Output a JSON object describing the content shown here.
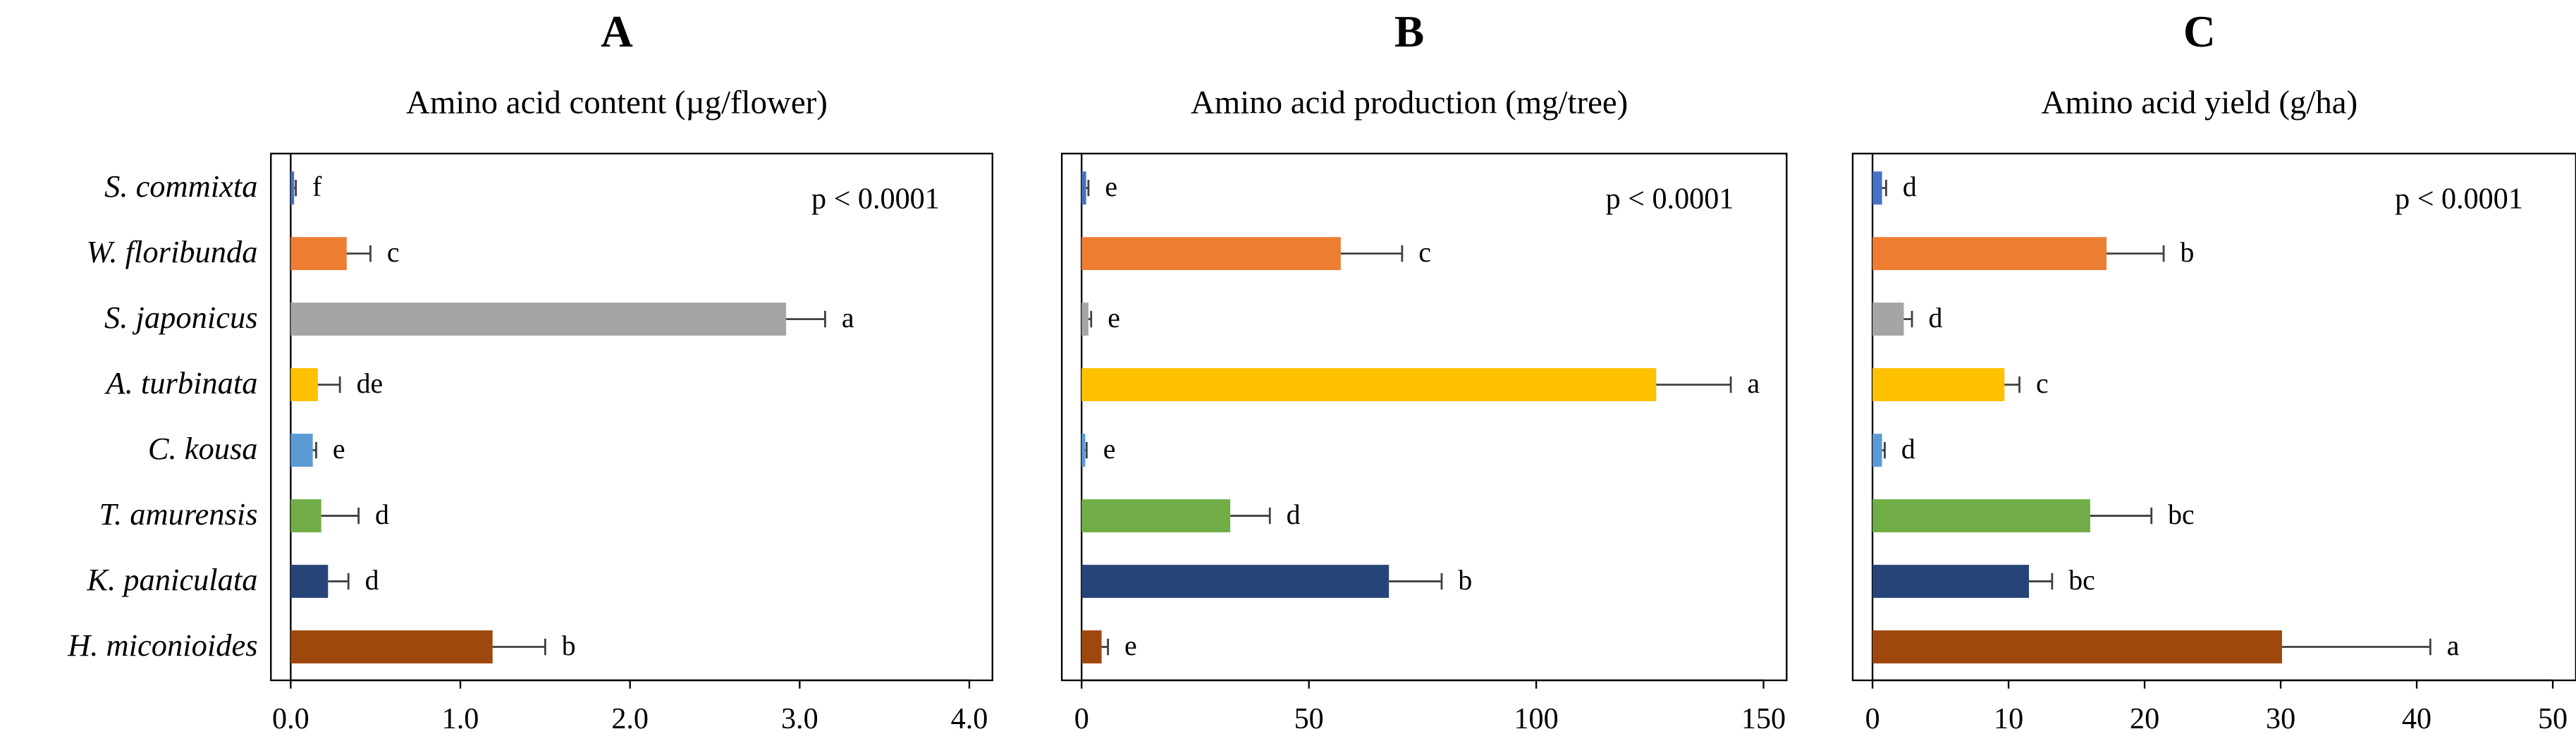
{
  "chart_data": [
    {
      "type": "bar",
      "orientation": "horizontal",
      "title": "A",
      "subtitle": "Amino acid content (µg/flower)",
      "categories": [
        "S. commixta",
        "W. floribunda",
        "S. japonicus",
        "A. turbinata",
        "C. kousa",
        "T. amurensis",
        "K. paniculata",
        "H. miconioides"
      ],
      "colors": [
        "#4472c4",
        "#ed7d31",
        "#a5a5a5",
        "#ffc000",
        "#5b9bd5",
        "#70ad47",
        "#264478",
        "#9e480e"
      ],
      "values": [
        0.02,
        0.33,
        2.92,
        0.16,
        0.13,
        0.18,
        0.22,
        1.19
      ],
      "errors": [
        0.01,
        0.14,
        0.23,
        0.13,
        0.02,
        0.22,
        0.12,
        0.31
      ],
      "letters": [
        "f",
        "c",
        "a",
        "de",
        "e",
        "d",
        "d",
        "b"
      ],
      "annotation": "p < 0.0001",
      "xlim": [
        0,
        4
      ],
      "xticks": [
        {
          "value": 0,
          "label": "0.0"
        },
        {
          "value": 1,
          "label": "1.0"
        },
        {
          "value": 2,
          "label": "2.0"
        },
        {
          "value": 3,
          "label": "3.0"
        },
        {
          "value": 4,
          "label": "4.0"
        }
      ]
    },
    {
      "type": "bar",
      "orientation": "horizontal",
      "title": "B",
      "subtitle": "Amino acid production (mg/tree)",
      "colors": [
        "#4472c4",
        "#ed7d31",
        "#a5a5a5",
        "#ffc000",
        "#5b9bd5",
        "#70ad47",
        "#264478",
        "#9e480e"
      ],
      "values": [
        1,
        57,
        1.5,
        126.4,
        0.8,
        32.7,
        67.6,
        4.4
      ],
      "errors": [
        0.5,
        13.5,
        0.6,
        16.4,
        0.3,
        8.7,
        11.6,
        1.4
      ],
      "letters": [
        "e",
        "c",
        "e",
        "a",
        "e",
        "d",
        "b",
        "e"
      ],
      "annotation": "p < 0.0001",
      "xlim": [
        0,
        150
      ],
      "xticks": [
        0,
        50,
        100,
        150
      ]
    },
    {
      "type": "bar",
      "orientation": "horizontal",
      "title": "C",
      "subtitle": "Amino acid yield (g/ha)",
      "colors": [
        "#4472c4",
        "#ed7d31",
        "#a5a5a5",
        "#ffc000",
        "#5b9bd5",
        "#70ad47",
        "#264478",
        "#9e480e"
      ],
      "values": [
        0.7,
        17.2,
        2.3,
        9.7,
        0.7,
        16,
        11.5,
        30.1
      ],
      "errors": [
        0.3,
        4.2,
        0.6,
        1.1,
        0.2,
        4.5,
        1.7,
        10.9
      ],
      "letters": [
        "d",
        "b",
        "d",
        "c",
        "d",
        "bc",
        "bc",
        "a"
      ],
      "annotation": "p < 0.0001",
      "xlim": [
        0,
        50
      ],
      "xticks": [
        0,
        10,
        20,
        30,
        40,
        50
      ]
    }
  ]
}
